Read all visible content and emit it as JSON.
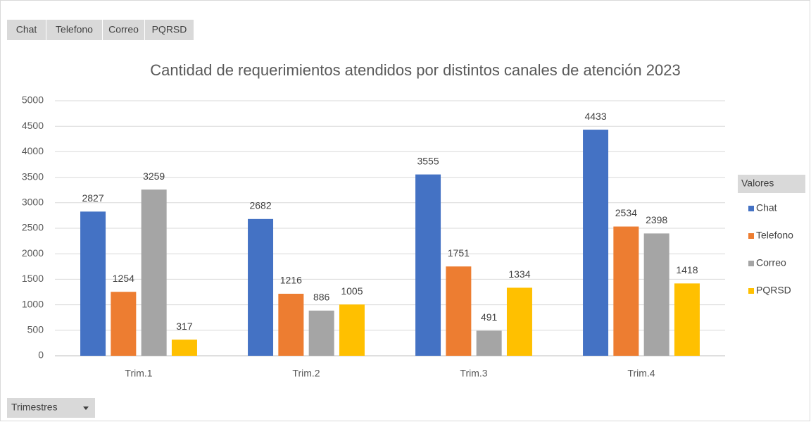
{
  "chart_data": {
    "type": "bar",
    "title": "Cantidad de requerimientos atendidos por distintos canales de atención 2023",
    "categories": [
      "Trim.1",
      "Trim.2",
      "Trim.3",
      "Trim.4"
    ],
    "series": [
      {
        "name": "Chat",
        "color": "#4472c4",
        "values": [
          2827,
          2682,
          3555,
          4433
        ]
      },
      {
        "name": "Telefono",
        "color": "#ed7d31",
        "values": [
          1254,
          1216,
          1751,
          2534
        ]
      },
      {
        "name": "Correo",
        "color": "#a5a5a5",
        "values": [
          3259,
          886,
          491,
          2398
        ]
      },
      {
        "name": "PQRSD",
        "color": "#ffc000",
        "values": [
          317,
          1005,
          1334,
          1418
        ]
      }
    ],
    "ylim": [
      0,
      5000
    ],
    "yticks": [
      0,
      500,
      1000,
      1500,
      2000,
      2500,
      3000,
      3500,
      4000,
      4500,
      5000
    ],
    "grid": true,
    "legend_title": "Valores",
    "axis_field_button": "Trimestres"
  }
}
